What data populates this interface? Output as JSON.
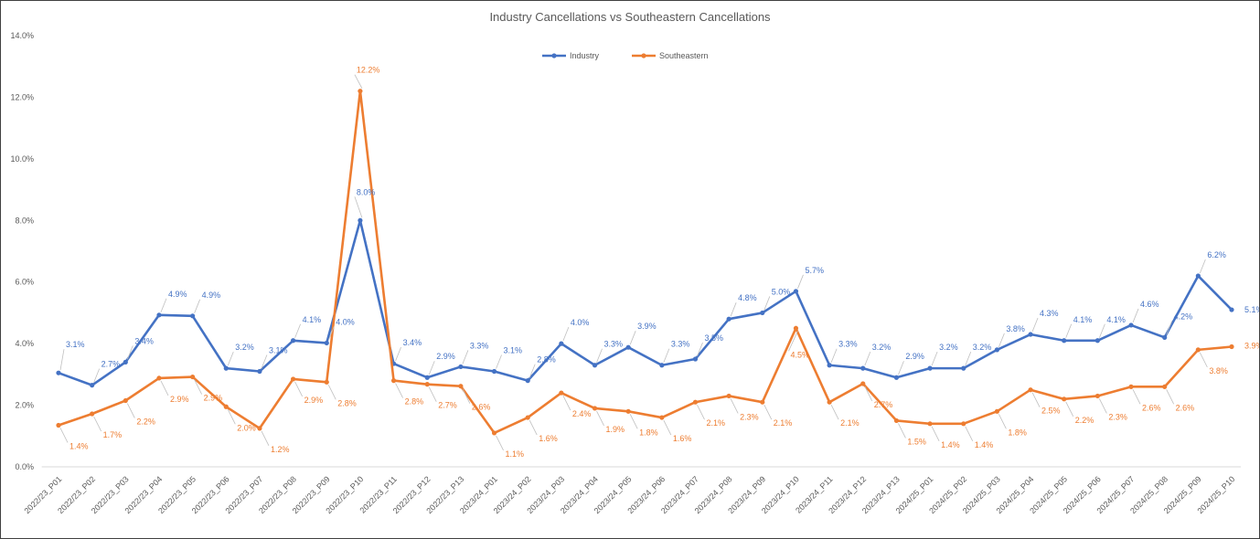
{
  "chart_data": {
    "type": "line",
    "title": "Industry Cancellations vs Southeastern Cancellations",
    "xlabel": "",
    "ylabel": "",
    "ylim": [
      0,
      14
    ],
    "yticks": [
      "0.0%",
      "2.0%",
      "4.0%",
      "6.0%",
      "8.0%",
      "10.0%",
      "12.0%",
      "14.0%"
    ],
    "grid": false,
    "legend_position": "top-center",
    "categories": [
      "2022/23_P01",
      "2022/23_P02",
      "2022/23_P03",
      "2022/23_P04",
      "2022/23_P05",
      "2022/23_P06",
      "2022/23_P07",
      "2022/23_P08",
      "2022/23_P09",
      "2022/23_P10",
      "2022/23_P11",
      "2022/23_P12",
      "2022/23_P13",
      "2023/24_P01",
      "2023/24_P02",
      "2023/24_P03",
      "2023/24_P04",
      "2023/24_P05",
      "2023/24_P06",
      "2023/24_P07",
      "2023/24_P08",
      "2023/24_P09",
      "2023/24_P10",
      "2023/24_P11",
      "2023/24_P12",
      "2023/24_P13",
      "2024/25_P01",
      "2024/25_P02",
      "2024/25_P03",
      "2024/25_P04",
      "2024/25_P05",
      "2024/25_P06",
      "2024/25_P07",
      "2024/25_P08",
      "2024/25_P09",
      "2024/25_P10"
    ],
    "series": [
      {
        "name": "Industry",
        "color": "#4472C4",
        "values": [
          3.05,
          2.65,
          3.4,
          4.93,
          4.9,
          3.2,
          3.1,
          4.1,
          4.02,
          8.0,
          3.35,
          2.9,
          3.25,
          3.1,
          2.8,
          4.0,
          3.3,
          3.88,
          3.3,
          3.5,
          4.8,
          5.0,
          5.7,
          3.3,
          3.2,
          2.9,
          3.2,
          3.2,
          3.8,
          4.3,
          4.1,
          4.1,
          4.6,
          4.2,
          6.2,
          5.1
        ],
        "labels": [
          "3.1%",
          "2.7%",
          "3.4%",
          "4.9%",
          "4.9%",
          "3.2%",
          "3.1%",
          "4.1%",
          "4.0%",
          "8.0%",
          "3.4%",
          "2.9%",
          "3.3%",
          "3.1%",
          "2.8%",
          "4.0%",
          "3.3%",
          "3.9%",
          "3.3%",
          "3.5%",
          "4.8%",
          "5.0%",
          "5.7%",
          "3.3%",
          "3.2%",
          "2.9%",
          "3.2%",
          "3.2%",
          "3.8%",
          "4.3%",
          "4.1%",
          "4.1%",
          "4.6%",
          "4.2%",
          "6.2%",
          "5.1%"
        ]
      },
      {
        "name": "Southeastern",
        "color": "#ED7D31",
        "values": [
          1.35,
          1.72,
          2.15,
          2.88,
          2.92,
          1.95,
          1.25,
          2.85,
          2.75,
          12.2,
          2.8,
          2.68,
          2.62,
          1.1,
          1.6,
          2.4,
          1.9,
          1.8,
          1.6,
          2.1,
          2.3,
          2.1,
          4.5,
          2.1,
          2.7,
          1.5,
          1.4,
          1.4,
          1.8,
          2.5,
          2.2,
          2.3,
          2.6,
          2.6,
          3.8,
          3.9
        ],
        "labels": [
          "1.4%",
          "1.7%",
          "2.2%",
          "2.9%",
          "2.9%",
          "2.0%",
          "1.2%",
          "2.9%",
          "2.8%",
          "12.2%",
          "2.8%",
          "2.7%",
          "2.6%",
          "1.1%",
          "1.6%",
          "2.4%",
          "1.9%",
          "1.8%",
          "1.6%",
          "2.1%",
          "2.3%",
          "2.1%",
          "4.5%",
          "2.1%",
          "2.7%",
          "1.5%",
          "1.4%",
          "1.4%",
          "1.8%",
          "2.5%",
          "2.2%",
          "2.3%",
          "2.6%",
          "2.6%",
          "3.8%",
          "3.9%"
        ]
      }
    ]
  }
}
